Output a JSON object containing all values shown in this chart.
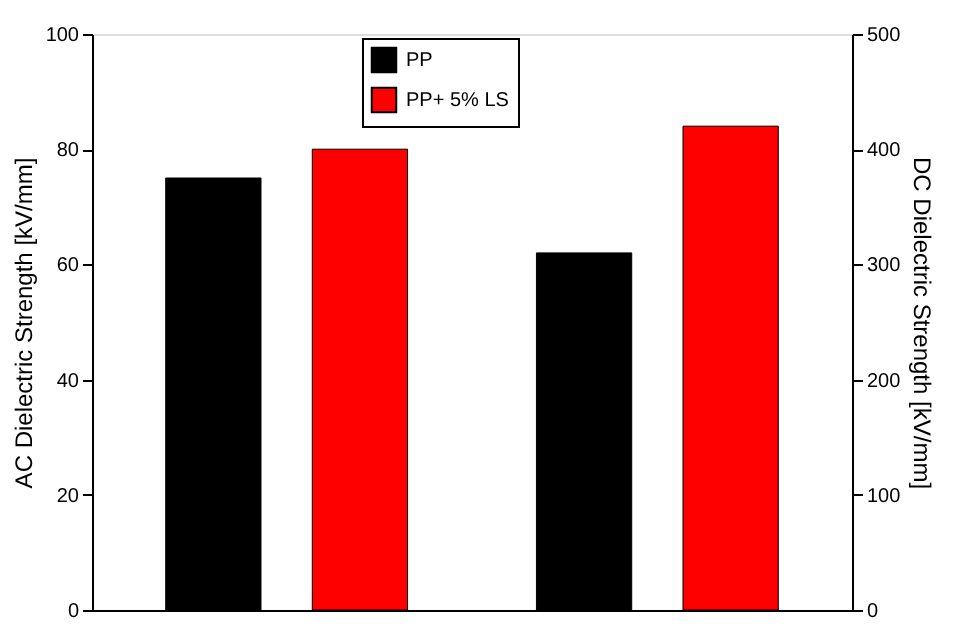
{
  "chart_data": {
    "type": "bar",
    "categories": [
      null,
      null
    ],
    "ylabel": "AC Dielectric Strength [kV/mm]",
    "y2label": "DC Dielectric Strength [kV/mm]",
    "ylim": [
      0,
      100
    ],
    "yticks": [
      0,
      20,
      40,
      60,
      80,
      100
    ],
    "y2lim": [
      0,
      500
    ],
    "y2ticks": [
      0,
      100,
      200,
      300,
      400,
      500
    ],
    "legend": "top",
    "grid": false,
    "series": [
      {
        "name": "PP",
        "color": "#000000",
        "values": [
          75,
          null
        ]
      },
      {
        "name": "PP+ 5% LS",
        "color": "#ff0000",
        "values": [
          80,
          null
        ]
      },
      {
        "color": "#000000",
        "axis": "y2",
        "values": [
          null,
          310
        ]
      },
      {
        "color": "#ff0000",
        "axis": "y2",
        "values": [
          null,
          420
        ]
      }
    ]
  }
}
